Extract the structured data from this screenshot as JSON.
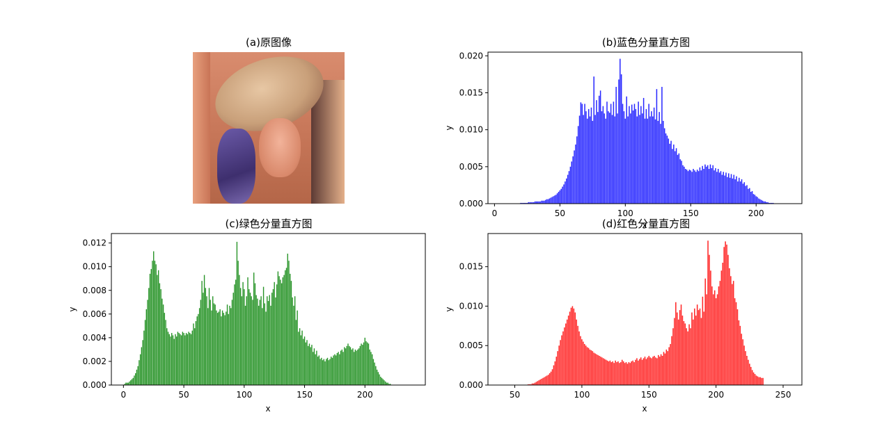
{
  "chart_data": [
    {
      "type": "image",
      "title": "(a)原图像"
    },
    {
      "type": "bar",
      "title": "(b)蓝色分量直方图",
      "color": "#0000ff",
      "xlabel": "x",
      "ylabel": "y",
      "xlim": [
        -5,
        235
      ],
      "ylim": [
        0,
        0.0205
      ],
      "xticks": [
        "0",
        "50",
        "100",
        "150",
        "200"
      ],
      "yticks": [
        "0.000",
        "0.005",
        "0.010",
        "0.015",
        "0.020"
      ],
      "x_start": 0,
      "values": [
        0,
        0,
        0,
        0,
        0,
        0,
        0,
        0,
        0,
        0,
        0,
        0,
        0,
        0,
        0,
        0,
        0,
        0,
        0,
        0,
        0.0001,
        0.0001,
        0.0001,
        0.0001,
        0.0001,
        0.0001,
        0.0002,
        0.0002,
        0.0002,
        0.0002,
        0.0002,
        0.0003,
        0.0003,
        0.0003,
        0.0003,
        0.0003,
        0.0004,
        0.0004,
        0.0004,
        0.0005,
        0.0006,
        0.0006,
        0.0007,
        0.0008,
        0.0009,
        0.001,
        0.0011,
        0.0012,
        0.0014,
        0.0016,
        0.0018,
        0.002,
        0.0023,
        0.0026,
        0.003,
        0.0034,
        0.0039,
        0.0044,
        0.005,
        0.0057,
        0.0064,
        0.0072,
        0.008,
        0.0091,
        0.0105,
        0.0119,
        0.0137,
        0.0135,
        0.012,
        0.0135,
        0.0125,
        0.0115,
        0.0128,
        0.0118,
        0.013,
        0.0112,
        0.0172,
        0.012,
        0.014,
        0.0124,
        0.0146,
        0.0153,
        0.0125,
        0.0132,
        0.0122,
        0.0115,
        0.0138,
        0.0125,
        0.0123,
        0.0135,
        0.012,
        0.0138,
        0.0118,
        0.0158,
        0.0122,
        0.0168,
        0.0196,
        0.0175,
        0.0135,
        0.0125,
        0.0115,
        0.0145,
        0.0118,
        0.0132,
        0.0122,
        0.0134,
        0.0126,
        0.0135,
        0.0128,
        0.0118,
        0.0138,
        0.012,
        0.0132,
        0.0122,
        0.0143,
        0.0115,
        0.0128,
        0.0115,
        0.0135,
        0.0118,
        0.0125,
        0.0118,
        0.013,
        0.0114,
        0.0155,
        0.0112,
        0.0124,
        0.0108,
        0.0158,
        0.0112,
        0.0102,
        0.0095,
        0.0092,
        0.0088,
        0.0081,
        0.0085,
        0.0074,
        0.008,
        0.0071,
        0.0075,
        0.0066,
        0.0068,
        0.006,
        0.0058,
        0.0052,
        0.005,
        0.0047,
        0.0046,
        0.0044,
        0.0046,
        0.0045,
        0.0043,
        0.0047,
        0.0045,
        0.0043,
        0.0046,
        0.0044,
        0.0049,
        0.0045,
        0.0051,
        0.0047,
        0.0053,
        0.005,
        0.0052,
        0.0047,
        0.0053,
        0.0048,
        0.0052,
        0.0045,
        0.0048,
        0.0043,
        0.0047,
        0.0042,
        0.0044,
        0.0039,
        0.0043,
        0.0038,
        0.0042,
        0.0036,
        0.0041,
        0.0035,
        0.004,
        0.0034,
        0.0039,
        0.0033,
        0.0037,
        0.003,
        0.0035,
        0.003,
        0.0033,
        0.0027,
        0.0029,
        0.0024,
        0.0025,
        0.002,
        0.0021,
        0.0016,
        0.0017,
        0.0013,
        0.0012,
        0.001,
        0.0009,
        0.0007,
        0.0006,
        0.0005,
        0.0004,
        0.0003,
        0.0003,
        0.0002,
        0.0002,
        0.0001,
        0.0001,
        0.0001,
        0.0001,
        0,
        0,
        0,
        0,
        0,
        0,
        0,
        0
      ]
    },
    {
      "type": "bar",
      "title": "(c)绿色分量直方图",
      "color": "#008000",
      "xlabel": "x",
      "ylabel": "y",
      "xlim": [
        -10,
        250
      ],
      "ylim": [
        0,
        0.0128
      ],
      "xticks": [
        "0",
        "50",
        "100",
        "150",
        "200"
      ],
      "yticks": [
        "0.000",
        "0.002",
        "0.004",
        "0.006",
        "0.008",
        "0.010",
        "0.012"
      ],
      "x_start": 0,
      "values": [
        0,
        0.0001,
        0.0002,
        0.0002,
        0.0002,
        0.0003,
        0.0004,
        0.0005,
        0.0006,
        0.0008,
        0.001,
        0.0013,
        0.0016,
        0.0021,
        0.0026,
        0.0032,
        0.0038,
        0.0046,
        0.0055,
        0.0064,
        0.0072,
        0.0082,
        0.0094,
        0.0098,
        0.0105,
        0.0113,
        0.0105,
        0.0102,
        0.0093,
        0.0097,
        0.0086,
        0.0081,
        0.0073,
        0.0068,
        0.0061,
        0.0055,
        0.0048,
        0.0045,
        0.0043,
        0.0041,
        0.0044,
        0.0042,
        0.0039,
        0.0043,
        0.0041,
        0.0045,
        0.0044,
        0.0043,
        0.0042,
        0.0045,
        0.0044,
        0.0042,
        0.0044,
        0.0043,
        0.0045,
        0.0044,
        0.0043,
        0.0046,
        0.0052,
        0.0048,
        0.0054,
        0.0058,
        0.006,
        0.0065,
        0.0072,
        0.0088,
        0.0078,
        0.0093,
        0.0082,
        0.0075,
        0.0065,
        0.0082,
        0.0072,
        0.0063,
        0.0075,
        0.0069,
        0.0068,
        0.0063,
        0.0061,
        0.0062,
        0.0064,
        0.0058,
        0.0063,
        0.0061,
        0.0059,
        0.0062,
        0.0068,
        0.006,
        0.0067,
        0.0065,
        0.0072,
        0.0078,
        0.0085,
        0.0089,
        0.0121,
        0.0105,
        0.0093,
        0.0082,
        0.0075,
        0.0087,
        0.0081,
        0.0067,
        0.0075,
        0.0091,
        0.0081,
        0.0078,
        0.0075,
        0.0072,
        0.0095,
        0.0086,
        0.0076,
        0.0073,
        0.0067,
        0.0072,
        0.0075,
        0.0065,
        0.0083,
        0.0069,
        0.0062,
        0.0075,
        0.0071,
        0.0076,
        0.0067,
        0.0078,
        0.0081,
        0.0087,
        0.0074,
        0.0085,
        0.0096,
        0.0092,
        0.0089,
        0.0086,
        0.0091,
        0.0093,
        0.0097,
        0.0099,
        0.0111,
        0.0105,
        0.0094,
        0.0088,
        0.0074,
        0.0067,
        0.0075,
        0.0055,
        0.0063,
        0.0045,
        0.0048,
        0.0042,
        0.0046,
        0.0039,
        0.0041,
        0.0036,
        0.0038,
        0.0033,
        0.0035,
        0.0032,
        0.0034,
        0.0028,
        0.0031,
        0.0026,
        0.0029,
        0.0024,
        0.0025,
        0.0022,
        0.0023,
        0.0021,
        0.0022,
        0.002,
        0.0022,
        0.0023,
        0.0021,
        0.0022,
        0.0024,
        0.0023,
        0.0025,
        0.0026,
        0.0025,
        0.0027,
        0.0028,
        0.0026,
        0.0029,
        0.003,
        0.0028,
        0.0032,
        0.0031,
        0.0033,
        0.0035,
        0.0033,
        0.0032,
        0.003,
        0.0031,
        0.0028,
        0.003,
        0.0029,
        0.003,
        0.0031,
        0.0033,
        0.0035,
        0.0034,
        0.0036,
        0.004,
        0.0037,
        0.0036,
        0.0035,
        0.003,
        0.0028,
        0.0026,
        0.0022,
        0.0019,
        0.0016,
        0.0013,
        0.0011,
        0.0009,
        0.0007,
        0.0006,
        0.0005,
        0.0004,
        0.0003,
        0.0002,
        0.0002,
        0.0001,
        0.0001,
        0,
        0,
        0,
        0,
        0
      ]
    },
    {
      "type": "bar",
      "title": "(d)红色分量直方图",
      "color": "#ff0000",
      "xlabel": "x",
      "ylabel": "y",
      "xlim": [
        30,
        264
      ],
      "ylim": [
        0,
        0.0192
      ],
      "xticks": [
        "50",
        "100",
        "150",
        "200",
        "250"
      ],
      "yticks": [
        "0.000",
        "0.005",
        "0.010",
        "0.015"
      ],
      "x_start": 40,
      "values": [
        0,
        0,
        0,
        0,
        0,
        0,
        0,
        0,
        0,
        0,
        0,
        0,
        0,
        0,
        0,
        0,
        0,
        0,
        0,
        0,
        0.0001,
        0.0001,
        0.0001,
        0.0002,
        0.0002,
        0.0003,
        0.0004,
        0.0005,
        0.0006,
        0.0007,
        0.0008,
        0.0009,
        0.001,
        0.0011,
        0.0012,
        0.0013,
        0.0015,
        0.0017,
        0.002,
        0.0025,
        0.003,
        0.0036,
        0.0043,
        0.005,
        0.0057,
        0.0063,
        0.0068,
        0.0073,
        0.0078,
        0.0083,
        0.0088,
        0.0093,
        0.0098,
        0.01,
        0.0097,
        0.0092,
        0.0083,
        0.0075,
        0.0068,
        0.0062,
        0.0058,
        0.0055,
        0.0052,
        0.005,
        0.0048,
        0.0047,
        0.0045,
        0.0044,
        0.0043,
        0.0041,
        0.004,
        0.0039,
        0.0038,
        0.0037,
        0.0036,
        0.0035,
        0.0034,
        0.0033,
        0.0032,
        0.0031,
        0.003,
        0.0031,
        0.0029,
        0.003,
        0.0028,
        0.0031,
        0.0029,
        0.003,
        0.0028,
        0.0029,
        0.0032,
        0.003,
        0.0028,
        0.0029,
        0.0027,
        0.0029,
        0.0028,
        0.003,
        0.0031,
        0.0029,
        0.0032,
        0.0034,
        0.0031,
        0.0033,
        0.0035,
        0.0032,
        0.0034,
        0.0036,
        0.0033,
        0.0035,
        0.0037,
        0.0035,
        0.0034,
        0.0036,
        0.0037,
        0.0035,
        0.0034,
        0.0038,
        0.0036,
        0.0039,
        0.0037,
        0.0042,
        0.004,
        0.0045,
        0.0043,
        0.0048,
        0.0052,
        0.0062,
        0.0072,
        0.0085,
        0.0105,
        0.0092,
        0.0083,
        0.0095,
        0.0102,
        0.0088,
        0.0081,
        0.0078,
        0.0072,
        0.0068,
        0.0077,
        0.0072,
        0.0092,
        0.0083,
        0.0097,
        0.0088,
        0.0102,
        0.0095,
        0.0097,
        0.0085,
        0.0112,
        0.0093,
        0.0135,
        0.0115,
        0.0183,
        0.0165,
        0.0145,
        0.0125,
        0.0115,
        0.012,
        0.011,
        0.0115,
        0.0125,
        0.0132,
        0.0145,
        0.0155,
        0.0175,
        0.0182,
        0.0178,
        0.0165,
        0.0148,
        0.0138,
        0.0128,
        0.0132,
        0.011,
        0.0105,
        0.0096,
        0.0082,
        0.0075,
        0.0065,
        0.0058,
        0.005,
        0.0043,
        0.0037,
        0.0032,
        0.0027,
        0.0023,
        0.0019,
        0.0016,
        0.0014,
        0.0012,
        0.0011,
        0.001,
        0.001,
        0.0009,
        0.0009
      ]
    }
  ]
}
